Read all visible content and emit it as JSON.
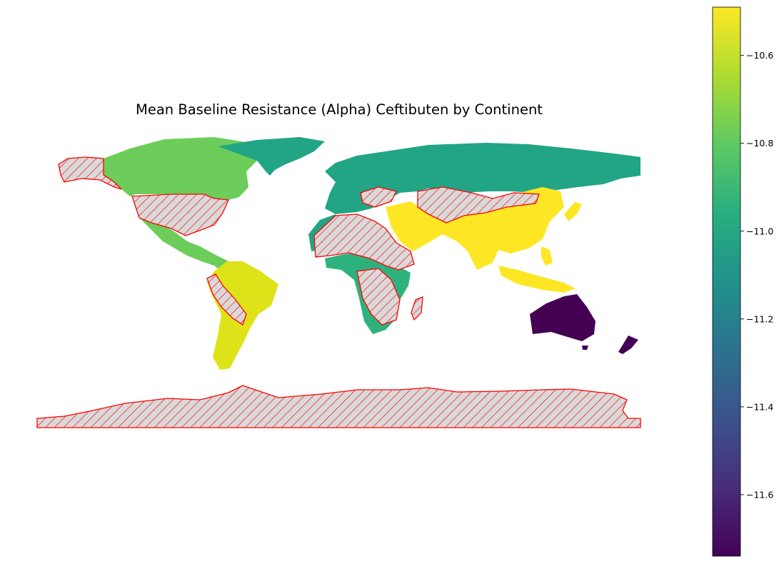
{
  "chart_data": {
    "type": "choropleth",
    "title": "Mean Baseline Resistance (Alpha) Ceftibuten by Continent",
    "colormap": "viridis",
    "colorbar": {
      "min": -11.74,
      "max": -10.49,
      "ticks": [
        -10.6,
        -10.8,
        -11.0,
        -11.2,
        -11.4,
        -11.6
      ],
      "tick_labels": [
        "−10.6",
        "−10.8",
        "−11.0",
        "−11.2",
        "−11.4",
        "−11.6"
      ],
      "placement": "right"
    },
    "regions": [
      {
        "name": "Asia",
        "value": -10.49,
        "color": "#fde725"
      },
      {
        "name": "South America",
        "value": -10.55,
        "color": "#dde318"
      },
      {
        "name": "North America",
        "value": -10.85,
        "color": "#6ccd5a"
      },
      {
        "name": "Africa",
        "value": -10.99,
        "color": "#2db27d"
      },
      {
        "name": "Europe",
        "value": -11.0,
        "color": "#21a585"
      },
      {
        "name": "Oceania",
        "value": -11.74,
        "color": "#440154"
      }
    ],
    "missing_data_style": {
      "fill": "#d9d9d9",
      "edge": "#ff0000",
      "hatch": "///"
    }
  }
}
